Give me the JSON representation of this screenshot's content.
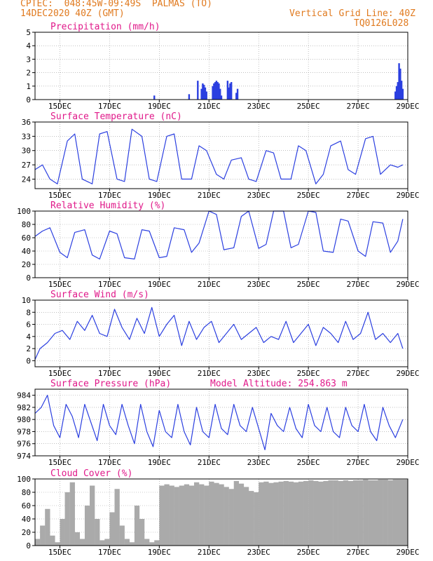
{
  "header": {
    "line1": "CPTEC:  048:45W-09:49S  PALMAS (TO)",
    "line2": "14DEC2020 40Z (GMT)",
    "right1": "Vertical Grid Line: 40Z",
    "right2": "TQ0126L028"
  },
  "colors": {
    "header": "#e07a1f",
    "panel_title": "#e0198a",
    "line": "#2b3fe0",
    "cloud": "#aaaaaa",
    "axis": "#000000"
  },
  "x_ticks": [
    "15DEC",
    "17DEC",
    "19DEC",
    "21DEC",
    "23DEC",
    "25DEC",
    "27DEC",
    "29DEC"
  ],
  "model_altitude": "Model Altitude: 254.863 m",
  "chart_data": [
    {
      "type": "bar",
      "title": "Precipitation (mm/h)",
      "x_unit": "days since 14DEC2020 00Z",
      "ylim": [
        0,
        5
      ],
      "y_ticks": [
        0,
        1,
        2,
        3,
        4,
        5
      ],
      "x": [
        4.8,
        6.2,
        6.55,
        6.7,
        6.75,
        6.8,
        6.85,
        6.9,
        7.15,
        7.2,
        7.25,
        7.3,
        7.35,
        7.4,
        7.45,
        7.5,
        7.75,
        7.8,
        7.85,
        7.9,
        8.1,
        8.15,
        14.5,
        14.55,
        14.6,
        14.65,
        14.7,
        14.75,
        14.8
      ],
      "values": [
        0.3,
        0.4,
        1.4,
        0.8,
        1.2,
        1.1,
        0.9,
        0.6,
        1.0,
        1.2,
        1.3,
        1.4,
        1.3,
        1.2,
        0.8,
        0.3,
        1.4,
        0.9,
        1.2,
        1.3,
        0.5,
        0.8,
        0.6,
        1.0,
        1.3,
        2.7,
        2.3,
        1.4,
        0.8
      ],
      "grid": true
    },
    {
      "type": "line",
      "title": "Surface Temperature (nC)",
      "x_unit": "days since 14DEC2020 00Z",
      "ylim": [
        22,
        36
      ],
      "y_ticks": [
        24,
        27,
        30,
        33,
        36
      ],
      "series": [
        {
          "x": [
            0,
            0.3,
            0.6,
            0.9,
            1.3,
            1.6,
            1.9,
            2.3,
            2.6,
            2.9,
            3.3,
            3.6,
            3.9,
            4.3,
            4.6,
            4.9,
            5.3,
            5.6,
            5.9,
            6.3,
            6.6,
            6.9,
            7.3,
            7.6,
            7.9,
            8.3,
            8.6,
            8.9,
            9.3,
            9.6,
            9.9,
            10.3,
            10.6,
            10.9,
            11.3,
            11.6,
            11.9,
            12.3,
            12.6,
            12.9,
            13.3,
            13.6,
            13.9,
            14.3,
            14.6,
            14.8
          ],
          "values": [
            26,
            27,
            24,
            23,
            32,
            33.5,
            24,
            23,
            33.5,
            34,
            24,
            23.5,
            34.5,
            33,
            24,
            23.5,
            33,
            33.5,
            24,
            24,
            31,
            30,
            25,
            24,
            28,
            28.5,
            24,
            23.5,
            30,
            29.5,
            24,
            24,
            31,
            30,
            23,
            25,
            31,
            32,
            26,
            25,
            32.5,
            33,
            25,
            27,
            26.5,
            27
          ]
        }
      ],
      "grid": true
    },
    {
      "type": "line",
      "title": "Relative Humidity (%)",
      "x_unit": "days since 14DEC2020 00Z",
      "ylim": [
        0,
        100
      ],
      "y_ticks": [
        0,
        20,
        40,
        60,
        80,
        100
      ],
      "series": [
        {
          "x": [
            0,
            0.3,
            0.6,
            1.0,
            1.3,
            1.6,
            2.0,
            2.3,
            2.6,
            3.0,
            3.3,
            3.6,
            4.0,
            4.3,
            4.6,
            5.0,
            5.3,
            5.6,
            6.0,
            6.3,
            6.6,
            7.0,
            7.3,
            7.6,
            8.0,
            8.3,
            8.6,
            9.0,
            9.3,
            9.6,
            10.0,
            10.3,
            10.6,
            11.0,
            11.3,
            11.6,
            12.0,
            12.3,
            12.6,
            13.0,
            13.3,
            13.6,
            14.0,
            14.3,
            14.6,
            14.8
          ],
          "values": [
            62,
            70,
            75,
            38,
            30,
            68,
            72,
            34,
            28,
            70,
            66,
            30,
            28,
            72,
            70,
            30,
            32,
            75,
            72,
            38,
            52,
            100,
            95,
            42,
            45,
            92,
            100,
            44,
            50,
            100,
            100,
            45,
            50,
            100,
            98,
            40,
            38,
            88,
            85,
            40,
            32,
            84,
            82,
            38,
            55,
            88
          ]
        }
      ],
      "grid": true
    },
    {
      "type": "line",
      "title": "Surface Wind (m/s)",
      "x_unit": "days since 14DEC2020 00Z",
      "ylim": [
        -1,
        10
      ],
      "y_ticks": [
        0,
        2,
        4,
        6,
        8,
        10
      ],
      "series": [
        {
          "x": [
            0,
            0.2,
            0.5,
            0.8,
            1.1,
            1.4,
            1.7,
            2.0,
            2.3,
            2.6,
            2.9,
            3.2,
            3.5,
            3.8,
            4.1,
            4.4,
            4.7,
            5.0,
            5.3,
            5.6,
            5.9,
            6.2,
            6.5,
            6.8,
            7.1,
            7.4,
            7.7,
            8.0,
            8.3,
            8.6,
            8.9,
            9.2,
            9.5,
            9.8,
            10.1,
            10.4,
            10.7,
            11.0,
            11.3,
            11.6,
            11.9,
            12.2,
            12.5,
            12.8,
            13.1,
            13.4,
            13.7,
            14.0,
            14.3,
            14.6,
            14.8
          ],
          "values": [
            0.2,
            2.0,
            3.0,
            4.5,
            5.0,
            3.5,
            6.5,
            5.0,
            7.5,
            4.5,
            4.0,
            8.5,
            5.5,
            3.5,
            7.0,
            4.5,
            8.8,
            4.0,
            6.0,
            7.5,
            2.5,
            6.5,
            3.5,
            5.5,
            6.5,
            3.0,
            4.5,
            6.0,
            3.5,
            4.5,
            5.5,
            3.0,
            4.0,
            3.5,
            6.5,
            3.0,
            4.5,
            6.0,
            2.5,
            5.5,
            4.5,
            3.0,
            6.5,
            3.5,
            4.5,
            8.0,
            3.5,
            4.5,
            3.0,
            4.5,
            2.0
          ]
        }
      ],
      "grid": true
    },
    {
      "type": "line",
      "title": "Surface Pressure (hPa)",
      "x_unit": "days since 14DEC2020 00Z",
      "ylim": [
        974,
        985
      ],
      "y_ticks": [
        974,
        976,
        978,
        980,
        982,
        984
      ],
      "series": [
        {
          "x": [
            0,
            0.25,
            0.5,
            0.75,
            1.0,
            1.25,
            1.5,
            1.75,
            2.0,
            2.25,
            2.5,
            2.75,
            3.0,
            3.25,
            3.5,
            3.75,
            4.0,
            4.25,
            4.5,
            4.75,
            5.0,
            5.25,
            5.5,
            5.75,
            6.0,
            6.25,
            6.5,
            6.75,
            7.0,
            7.25,
            7.5,
            7.75,
            8.0,
            8.25,
            8.5,
            8.75,
            9.0,
            9.25,
            9.5,
            9.75,
            10.0,
            10.25,
            10.5,
            10.75,
            11.0,
            11.25,
            11.5,
            11.75,
            12.0,
            12.25,
            12.5,
            12.75,
            13.0,
            13.25,
            13.5,
            13.75,
            14.0,
            14.25,
            14.5,
            14.8
          ],
          "values": [
            981,
            982,
            984,
            979,
            977,
            982.5,
            980.5,
            977,
            982.5,
            979.5,
            976.5,
            982.5,
            979,
            977.5,
            982.5,
            979,
            976,
            982.5,
            978,
            975.5,
            981.5,
            978,
            977,
            982.5,
            978,
            975.8,
            982,
            978,
            977,
            982.5,
            978.5,
            977.5,
            982.5,
            979,
            978,
            982,
            978.5,
            975,
            981,
            979,
            978,
            982,
            978.5,
            977,
            982.5,
            979,
            978,
            982,
            978,
            977,
            982,
            979,
            978,
            982.5,
            978,
            976.5,
            982,
            979,
            977,
            980
          ]
        }
      ],
      "grid": true
    },
    {
      "type": "bar",
      "title": "Cloud Cover (%)",
      "x_unit": "days since 14DEC2020 00Z",
      "ylim": [
        0,
        100
      ],
      "y_ticks": [
        0,
        20,
        40,
        60,
        80,
        100
      ],
      "x": [
        0.0,
        0.2,
        0.4,
        0.6,
        0.8,
        1.0,
        1.2,
        1.4,
        1.6,
        1.8,
        2.0,
        2.2,
        2.4,
        2.6,
        2.8,
        3.0,
        3.2,
        3.4,
        3.6,
        3.8,
        4.0,
        4.2,
        4.4,
        4.6,
        4.8,
        5.0,
        5.2,
        5.4,
        5.6,
        5.8,
        6.0,
        6.2,
        6.4,
        6.6,
        6.8,
        7.0,
        7.2,
        7.4,
        7.6,
        7.8,
        8.0,
        8.2,
        8.4,
        8.6,
        8.8,
        9.0,
        9.2,
        9.4,
        9.6,
        9.8,
        10.0,
        10.2,
        10.4,
        10.6,
        10.8,
        11.0,
        11.2,
        11.4,
        11.6,
        11.8,
        12.0,
        12.2,
        12.4,
        12.6,
        12.8,
        13.0,
        13.2,
        13.4,
        13.6,
        13.8,
        14.0,
        14.2,
        14.4,
        14.6,
        14.8
      ],
      "values": [
        10,
        30,
        55,
        15,
        5,
        40,
        80,
        95,
        20,
        10,
        60,
        90,
        40,
        8,
        10,
        50,
        85,
        30,
        10,
        5,
        60,
        40,
        10,
        5,
        8,
        90,
        92,
        90,
        88,
        90,
        92,
        90,
        95,
        92,
        90,
        96,
        94,
        92,
        88,
        85,
        97,
        93,
        88,
        82,
        80,
        95,
        96,
        94,
        95,
        96,
        97,
        96,
        95,
        96,
        97,
        98,
        97,
        96,
        97,
        98,
        98,
        97,
        98,
        97,
        98,
        98,
        99,
        98,
        98,
        99,
        99,
        98,
        99,
        99,
        99
      ],
      "grid": true
    }
  ]
}
